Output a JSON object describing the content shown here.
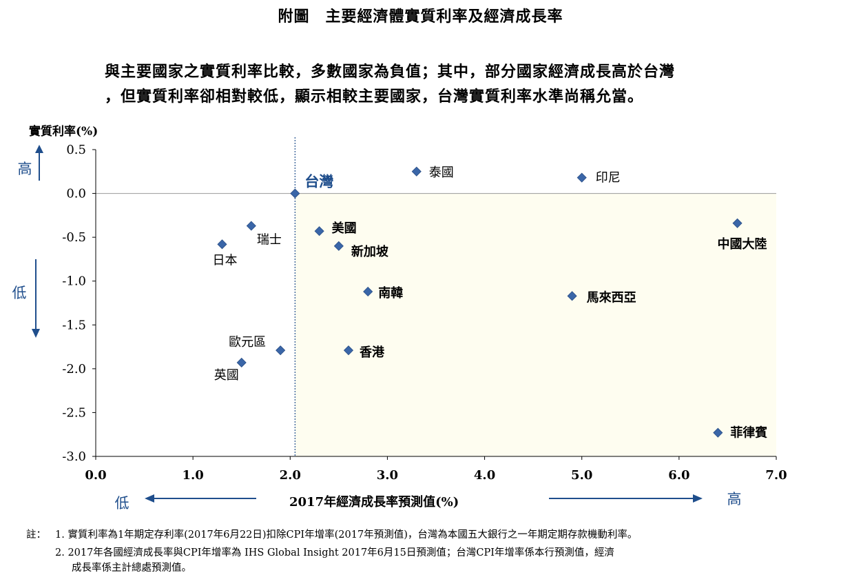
{
  "title": "附圖　主要經濟體實質利率及經濟成長率",
  "subtitle_line1": "與主要國家之實質利率比較，多數國家為負值；其中，部分國家經濟成長高於台灣",
  "subtitle_line2": "，但實質利率卻相對較低，顯示相較主要國家，台灣實質利率水準尚稱允當。",
  "notes": {
    "prefix": "註：",
    "line1": "1. 實質利率為1年期定存利率(2017年6月22日)扣除CPI年增率(2017年預測值)，台灣為本國五大銀行之一年期定期存款機動利率。",
    "line2": "2. 2017年各國經濟成長率與CPI年增率為 IHS Global Insight 2017年6月15日預測值；台灣CPI年增率係本行預測值，經濟",
    "line3": "成長率係主計總處預測值。"
  },
  "colors": {
    "marker": "#3a66a8",
    "accent": "#1f4e8c",
    "shade": "#fefdf0",
    "axis": "#000000",
    "gridline": "#999999"
  },
  "chart_data": {
    "type": "scatter",
    "xlabel": "2017年經濟成長率預測值(%)",
    "ylabel": "實質利率(%)",
    "xlim": [
      0,
      7
    ],
    "ylim": [
      -3.0,
      0.5
    ],
    "x_ticks": [
      "0.0",
      "1.0",
      "2.0",
      "3.0",
      "4.0",
      "5.0",
      "6.0",
      "7.0"
    ],
    "y_ticks": [
      "0.5",
      "0.0",
      "-0.5",
      "-1.0",
      "-1.5",
      "-2.0",
      "-2.5",
      "-3.0"
    ],
    "reference_x": 2.05,
    "reference_y": 0.0,
    "shaded_region": "x > 2.05 and y < 0",
    "y_direction_labels": {
      "high": "高",
      "low": "低"
    },
    "x_direction_labels": {
      "low": "低",
      "high": "高"
    },
    "points": [
      {
        "label": "台灣",
        "x": 2.05,
        "y": 0.0,
        "emphasis": true
      },
      {
        "label": "泰國",
        "x": 3.3,
        "y": 0.25
      },
      {
        "label": "印尼",
        "x": 5.0,
        "y": 0.18
      },
      {
        "label": "美國",
        "x": 2.3,
        "y": -0.43
      },
      {
        "label": "新加坡",
        "x": 2.5,
        "y": -0.6
      },
      {
        "label": "瑞士",
        "x": 1.6,
        "y": -0.37
      },
      {
        "label": "日本",
        "x": 1.3,
        "y": -0.58
      },
      {
        "label": "中國大陸",
        "x": 6.6,
        "y": -0.34
      },
      {
        "label": "南韓",
        "x": 2.8,
        "y": -1.12
      },
      {
        "label": "馬來西亞",
        "x": 4.9,
        "y": -1.17
      },
      {
        "label": "歐元區",
        "x": 1.9,
        "y": -1.79
      },
      {
        "label": "香港",
        "x": 2.6,
        "y": -1.79
      },
      {
        "label": "英國",
        "x": 1.5,
        "y": -1.93
      },
      {
        "label": "菲律賓",
        "x": 6.4,
        "y": -2.73
      }
    ]
  }
}
